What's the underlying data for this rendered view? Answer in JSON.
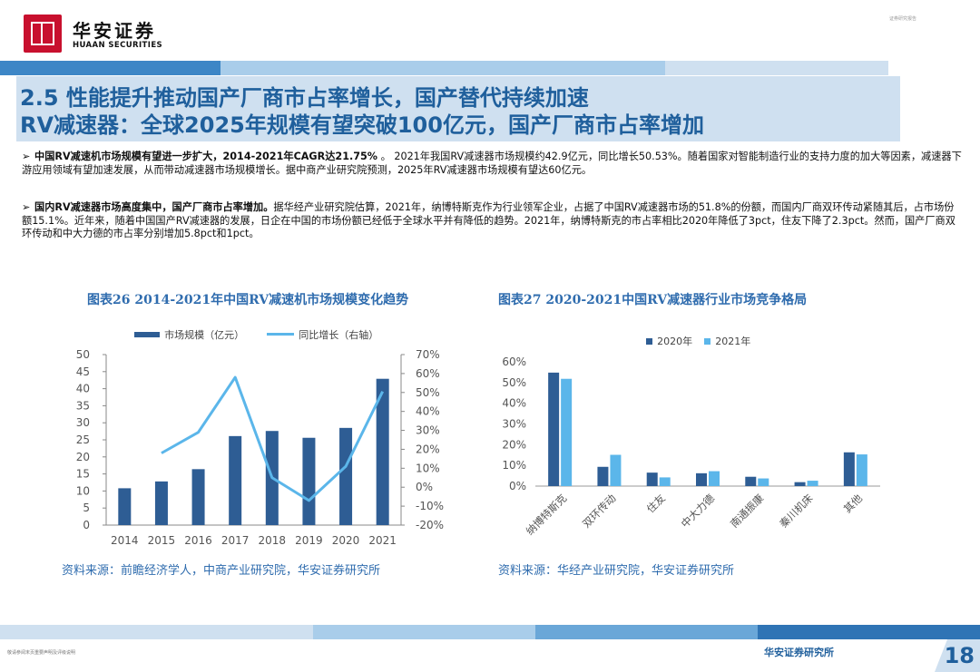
{
  "header": {
    "logo_cn": "华安证券",
    "logo_en": "HUAAN SECURITIES",
    "top_right": "证券研究报告"
  },
  "title": {
    "line1": "2.5 性能提升推动国产厂商市占率增长，国产替代持续加速",
    "line2": "RV减速器：全球2025年规模有望突破100亿元，国产厂商市占率增加"
  },
  "paragraphs": [
    {
      "bold": "中国RV减速机市场规模有望进一步扩大，2014-2021年CAGR达21.75%",
      "rest": " 。 2021年我国RV减速器市场规模约42.9亿元，同比增长50.53%。随着国家对智能制造行业的支持力度的加大等因素，减速器下游应用领域有望加速发展，从而带动减速器市场规模增长。据中商产业研究院预测，2025年RV减速器市场规模有望达60亿元。"
    },
    {
      "bold": "国内RV减速器市场高度集中，国产厂商市占率增加。",
      "rest": "据华经产业研究院估算，2021年，纳博特斯克作为行业领军企业，占据了中国RV减速器市场的51.8%的份额，而国内厂商双环传动紧随其后，占市场份额15.1%。近年来，随着中国国产RV减速器的发展，日企在中国的市场份额已经低于全球水平并有降低的趋势。2021年，纳博特斯克的市占率相比2020年降低了3pct，住友下降了2.3pct。然而，国产厂商双环传动和中大力德的市占率分别增加5.8pct和1pct。"
    }
  ],
  "chart_data": [
    {
      "type": "bar+line",
      "title": "图表26 2014-2021年中国RV减速机市场规模变化趋势",
      "categories": [
        "2014",
        "2015",
        "2016",
        "2017",
        "2018",
        "2019",
        "2020",
        "2021"
      ],
      "series": [
        {
          "name": "市场规模（亿元）",
          "type": "bar",
          "axis": "left",
          "values": [
            10.8,
            12.8,
            16.4,
            26.1,
            27.6,
            25.6,
            28.5,
            42.9
          ]
        },
        {
          "name": "同比增长（右轴）",
          "type": "line",
          "axis": "right",
          "values": [
            null,
            0.18,
            0.29,
            0.58,
            0.05,
            -0.07,
            0.11,
            0.5053
          ]
        }
      ],
      "left_ticks": [
        "50",
        "45",
        "40",
        "35",
        "30",
        "25",
        "20",
        "15",
        "10",
        "5",
        "0"
      ],
      "left_ylim": [
        0,
        50
      ],
      "right_ticks": [
        "70%",
        "60%",
        "50%",
        "40%",
        "30%",
        "20%",
        "10%",
        "0%",
        "-10%",
        "-20%"
      ],
      "right_ylim": [
        -0.2,
        0.7
      ],
      "legend": "top-center",
      "colors": {
        "bar": "#2e5d94",
        "line": "#5bb6ea"
      },
      "source": "资料来源：前瞻经济学人，中商产业研究院，华安证券研究所"
    },
    {
      "type": "bar",
      "title": "图表27 2020-2021中国RV减速器行业市场竞争格局",
      "categories": [
        "纳博特斯克",
        "双环传动",
        "住友",
        "中大力德",
        "南通振康",
        "秦川机床",
        "其他"
      ],
      "series": [
        {
          "name": "2020年",
          "values": [
            0.548,
            0.093,
            0.065,
            0.062,
            0.045,
            0.019,
            0.163
          ]
        },
        {
          "name": "2021年",
          "values": [
            0.518,
            0.151,
            0.042,
            0.072,
            0.037,
            0.026,
            0.153
          ]
        }
      ],
      "y_ticks": [
        "60%",
        "50%",
        "40%",
        "30%",
        "20%",
        "10%",
        "0%"
      ],
      "ylim": [
        0,
        0.6
      ],
      "legend": "top-right",
      "colors": {
        "2020年": "#2e5d94",
        "2021年": "#5bb6ea"
      },
      "source": "资料来源：华经产业研究院，华安证券研究所"
    }
  ],
  "footer": {
    "left": "敬请参阅末页重要声明及评级说明",
    "right": "华安证券研究所",
    "page": "18"
  },
  "colors": {
    "brand_red": "#c8102e",
    "title_blue": "#1f5f9c",
    "band_light": "#cfe0f0"
  }
}
